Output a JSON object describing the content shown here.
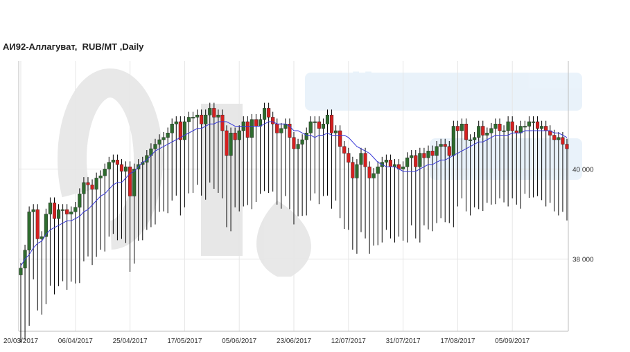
{
  "title": "АИ92-Аллагуват,  RUB/MT ,Daily",
  "watermark": "OilStat",
  "colors": {
    "up": "#2e6b2e",
    "down": "#d42020",
    "wick": "#000000",
    "ma": "#3a3ad8",
    "grid": "#e6e6e6",
    "axis": "#bdbdbd"
  },
  "chart_data": {
    "type": "candlestick",
    "xlabel": "",
    "ylabel": "",
    "ylim": [
      36400,
      42400
    ],
    "grid": true,
    "y_ticks": [
      {
        "value": 40000,
        "label": "40 000"
      },
      {
        "value": 38000,
        "label": "38 000"
      }
    ],
    "x_ticks": [
      {
        "index": 0,
        "label": "20/03/2017"
      },
      {
        "index": 13,
        "label": "06/04/2017"
      },
      {
        "index": 26,
        "label": "25/04/2017"
      },
      {
        "index": 39,
        "label": "17/05/2017"
      },
      {
        "index": 52,
        "label": "05/06/2017"
      },
      {
        "index": 65,
        "label": "23/06/2017"
      },
      {
        "index": 78,
        "label": "12/07/2017"
      },
      {
        "index": 91,
        "label": "31/07/2017"
      },
      {
        "index": 104,
        "label": "17/08/2017"
      },
      {
        "index": 117,
        "label": "05/09/2017"
      }
    ],
    "closes": [
      37800,
      38200,
      39050,
      39100,
      38450,
      38500,
      39000,
      39250,
      38900,
      39100,
      39100,
      39000,
      39050,
      39150,
      39450,
      39700,
      39650,
      39550,
      39800,
      39850,
      40000,
      40150,
      40200,
      40100,
      39950,
      40050,
      39400,
      40000,
      40100,
      40150,
      40300,
      40450,
      40550,
      40650,
      40700,
      40800,
      41000,
      41050,
      40650,
      41050,
      41150,
      41150,
      41200,
      41000,
      41200,
      41350,
      41150,
      41200,
      40850,
      40300,
      40800,
      40650,
      40850,
      41050,
      40700,
      41100,
      40950,
      41100,
      41350,
      41150,
      41000,
      40800,
      40900,
      41000,
      40700,
      40450,
      40550,
      40650,
      40800,
      41050,
      41050,
      40900,
      41000,
      41200,
      40800,
      40850,
      40500,
      40350,
      40150,
      39800,
      40100,
      40350,
      40050,
      39800,
      39900,
      40050,
      40150,
      40200,
      40050,
      40100,
      40000,
      40050,
      40250,
      40300,
      40050,
      40350,
      40250,
      40400,
      40300,
      40500,
      40550,
      40500,
      40300,
      40950,
      40850,
      41000,
      40650,
      40650,
      40700,
      40950,
      40750,
      40800,
      40900,
      41000,
      40850,
      40850,
      41050,
      40850,
      40800,
      40950,
      40950,
      41050,
      41050,
      40900,
      40950,
      40850,
      40750,
      40650,
      40700,
      40550,
      40450
    ],
    "ma": [
      37850,
      38000,
      38100,
      38250,
      38350,
      38400,
      38550,
      38650,
      38700,
      38750,
      38800,
      38850,
      38850,
      38900,
      38950,
      39050,
      39100,
      39200,
      39300,
      39400,
      39450,
      39550,
      39650,
      39700,
      39700,
      39800,
      39900,
      39950,
      40050,
      40150,
      40200,
      40300,
      40400,
      40450,
      40500,
      40550,
      40600,
      40650,
      40700,
      40750,
      40800,
      40850,
      40900,
      40900,
      40950,
      41000,
      41000,
      41050,
      41050,
      41050,
      41000,
      40950,
      40950,
      40950,
      40950,
      40950,
      40950,
      40950,
      41000,
      41050,
      41050,
      41000,
      41000,
      41000,
      40950,
      40850,
      40850,
      40800,
      40750,
      40750,
      40700,
      40750,
      40750,
      40800,
      40750,
      40750,
      40750,
      40750,
      40700,
      40600,
      40500,
      40450,
      40400,
      40350,
      40250,
      40150,
      40100,
      40050,
      40050,
      40050,
      40000,
      39950,
      39950,
      39950,
      39950,
      40000,
      40050,
      40100,
      40100,
      40150,
      40200,
      40200,
      40250,
      40300,
      40350,
      40400,
      40450,
      40500,
      40550,
      40600,
      40600,
      40650,
      40700,
      40750,
      40750,
      40750,
      40750,
      40800,
      40800,
      40800,
      40850,
      40850,
      40850,
      40850,
      40850,
      40850,
      40850,
      40800,
      40800,
      40750,
      40700
    ]
  }
}
